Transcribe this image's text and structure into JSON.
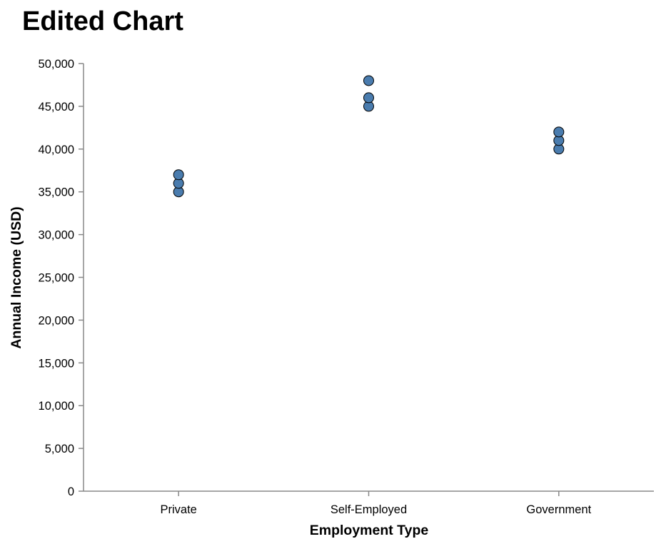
{
  "chart_data": {
    "type": "scatter",
    "title": "Edited Chart",
    "xlabel": "Employment Type",
    "ylabel": "Annual Income (USD)",
    "categories": [
      "Private",
      "Self-Employed",
      "Government"
    ],
    "points": [
      {
        "category": "Private",
        "value": 35000
      },
      {
        "category": "Private",
        "value": 36000
      },
      {
        "category": "Private",
        "value": 37000
      },
      {
        "category": "Self-Employed",
        "value": 45000
      },
      {
        "category": "Self-Employed",
        "value": 46000
      },
      {
        "category": "Self-Employed",
        "value": 48000
      },
      {
        "category": "Government",
        "value": 40000
      },
      {
        "category": "Government",
        "value": 41000
      },
      {
        "category": "Government",
        "value": 42000
      }
    ],
    "ylim": [
      0,
      50000
    ],
    "yticks": [
      0,
      5000,
      10000,
      15000,
      20000,
      25000,
      30000,
      35000,
      40000,
      45000,
      50000
    ],
    "ytick_labels": [
      "0",
      "5,000",
      "10,000",
      "15,000",
      "20,000",
      "25,000",
      "30,000",
      "35,000",
      "40,000",
      "45,000",
      "50,000"
    ],
    "grid": false,
    "point_color": "#4a7cae",
    "point_stroke": "#000000"
  }
}
